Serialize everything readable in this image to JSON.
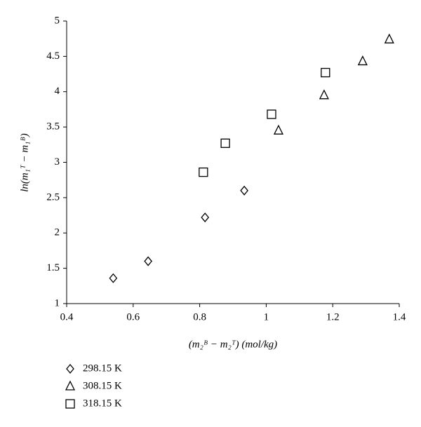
{
  "chart_data": {
    "type": "scatter",
    "x_label": "(m₂ᴮ − m₂ᵀ) (mol/kg)",
    "y_label": "ln(m₁ᵀ − m₁ᴮ)",
    "xlim": [
      0.4,
      1.4
    ],
    "xticks": [
      0.4,
      0.6,
      0.8,
      1,
      1.2,
      1.4
    ],
    "ylim": [
      1,
      5
    ],
    "yticks": [
      1,
      1.5,
      2,
      2.5,
      3,
      3.5,
      4,
      4.5,
      5
    ],
    "grid": false,
    "legend": "bottom-left",
    "series": [
      {
        "name": "298.15 K",
        "color": "#000000",
        "marker": "diamond",
        "x": [
          0.54,
          0.645,
          0.816,
          0.934
        ],
        "values": [
          1.36,
          1.6,
          2.22,
          2.6
        ]
      },
      {
        "name": "308.15 K",
        "color": "#000000",
        "marker": "triangle",
        "x": [
          1.037,
          1.174,
          1.29,
          1.37
        ],
        "values": [
          3.45,
          3.95,
          4.43,
          4.74
        ]
      },
      {
        "name": "318.15 K",
        "color": "#000000",
        "marker": "square",
        "x": [
          0.811,
          0.877,
          1.016,
          1.178
        ],
        "values": [
          2.86,
          3.27,
          3.68,
          4.27
        ]
      }
    ]
  }
}
